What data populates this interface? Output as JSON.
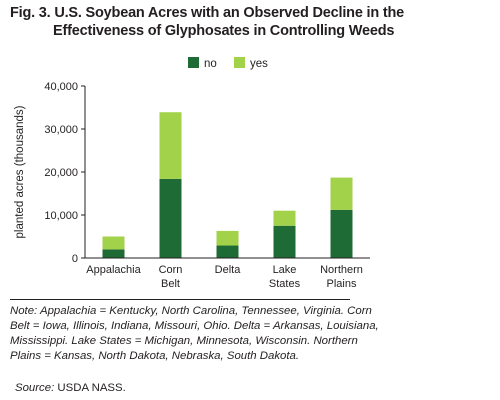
{
  "figure": {
    "title_line1": "Fig. 3. U.S. Soybean Acres with an Observed Decline in the",
    "title_line2": "Effectiveness of Glyphosates in Controlling Weeds"
  },
  "chart_data": {
    "type": "bar",
    "stacked": true,
    "categories": [
      "Appalachia",
      "Corn Belt",
      "Delta",
      "Lake States",
      "Northern Plains"
    ],
    "category_label_lines": [
      [
        "Appalachia"
      ],
      [
        "Corn",
        "Belt"
      ],
      [
        "Delta"
      ],
      [
        "Lake",
        "States"
      ],
      [
        "Northern",
        "Plains"
      ]
    ],
    "series": [
      {
        "name": "no",
        "color": "#1e6b35",
        "values": [
          2000,
          18400,
          2900,
          7500,
          11200
        ]
      },
      {
        "name": "yes",
        "color": "#a2d14a",
        "values": [
          3000,
          15500,
          3400,
          3500,
          7500
        ]
      }
    ],
    "ylabel": "planted acres (thousands)",
    "xlabel": "",
    "ylim": [
      0,
      40000
    ],
    "yticks": [
      0,
      10000,
      20000,
      30000,
      40000
    ],
    "ytick_labels": [
      "0",
      "10,000",
      "20,000",
      "30,000",
      "40,000"
    ],
    "legend_position": "top-right",
    "grid": false
  },
  "note": "Note: Appalachia = Kentucky, North Carolina, Tennessee, Virginia. Corn Belt = Iowa, Illinois, Indiana, Missouri, Ohio. Delta = Arkansas, Louisiana, Mississippi. Lake States = Michigan, Minnesota, Wisconsin. Northern Plains = Kansas, North Dakota, Nebraska, South Dakota.",
  "source": {
    "label": "Source:",
    "text": " USDA NASS."
  }
}
